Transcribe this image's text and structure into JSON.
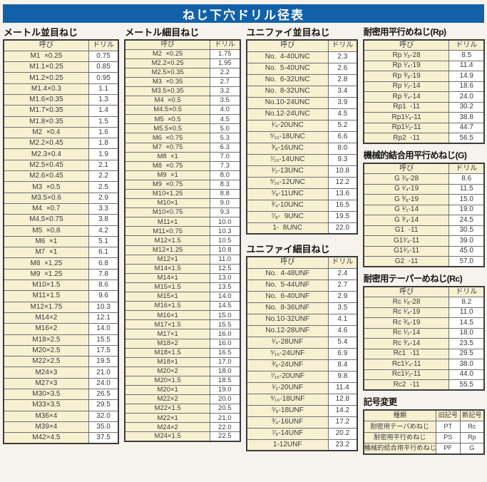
{
  "title": "ねじ下穴ドリル径表",
  "colors": {
    "header_bar": "#1261a8",
    "cell_cream": "#f7f1d2",
    "border": "#3c3c3c"
  },
  "sections": {
    "metric_coarse": {
      "title": "メートル並目ねじ",
      "columns": [
        "呼び",
        "ドリル"
      ],
      "rows": [
        [
          "M1  ×0.25",
          "0.75"
        ],
        [
          "M1.1×0.25",
          "0.85"
        ],
        [
          "M1.2×0.25",
          "0.95"
        ],
        [
          "M1.4×0.3",
          "1.1"
        ],
        [
          "M1.6×0.35",
          "1.3"
        ],
        [
          "M1.7×0.35",
          "1.4"
        ],
        [
          "M1.8×0.35",
          "1.5"
        ],
        [
          "M2  ×0.4",
          "1.6"
        ],
        [
          "M2.2×0.45",
          "1.8"
        ],
        [
          "M2.3×0.4",
          "1.9"
        ],
        [
          "M2.5×0.45",
          "2.1"
        ],
        [
          "M2.6×0.45",
          "2.2"
        ],
        [
          "M3  ×0.5",
          "2.5"
        ],
        [
          "M3.5×0.6",
          "2.9"
        ],
        [
          "M4  ×0.7",
          "3.3"
        ],
        [
          "M4.5×0.75",
          "3.8"
        ],
        [
          "M5  ×0.8",
          "4.2"
        ],
        [
          "M6  ×1",
          "5.1"
        ],
        [
          "M7  ×1",
          "6.1"
        ],
        [
          "M8  ×1.25",
          "6.8"
        ],
        [
          "M9  ×1.25",
          "7.8"
        ],
        [
          "M10×1.5",
          "8.6"
        ],
        [
          "M11×1.5",
          "9.6"
        ],
        [
          "M12×1.75",
          "10.3"
        ],
        [
          "M14×2",
          "12.1"
        ],
        [
          "M16×2",
          "14.0"
        ],
        [
          "M18×2.5",
          "15.5"
        ],
        [
          "M20×2.5",
          "17.5"
        ],
        [
          "M22×2.5",
          "19.5"
        ],
        [
          "M24×3",
          "21.0"
        ],
        [
          "M27×3",
          "24.0"
        ],
        [
          "M30×3.5",
          "26.5"
        ],
        [
          "M33×3.5",
          "29.5"
        ],
        [
          "M36×4",
          "32.0"
        ],
        [
          "M39×4",
          "35.0"
        ],
        [
          "M42×4.5",
          "37.5"
        ]
      ]
    },
    "metric_fine": {
      "title": "メートル細目ねじ",
      "columns": [
        "呼び",
        "ドリル"
      ],
      "rows": [
        [
          "M2  ×0.25",
          "1.75"
        ],
        [
          "M2.2×0.25",
          "1.95"
        ],
        [
          "M2.5×0.35",
          "2.2"
        ],
        [
          "M3  ×0.35",
          "2.7"
        ],
        [
          "M3.5×0.35",
          "3.2"
        ],
        [
          "M4  ×0.5",
          "3.5"
        ],
        [
          "M4.5×0.5",
          "4.0"
        ],
        [
          "M5  ×0.5",
          "4.5"
        ],
        [
          "M5.5×0.5",
          "5.0"
        ],
        [
          "M6  ×0.75",
          "5.3"
        ],
        [
          "M7  ×0.75",
          "6.3"
        ],
        [
          "M8  ×1",
          "7.0"
        ],
        [
          "M8  ×0.75",
          "7.3"
        ],
        [
          "M9  ×1",
          "8.0"
        ],
        [
          "M9  ×0.75",
          "8.3"
        ],
        [
          "M10×1.25",
          "8.8"
        ],
        [
          "M10×1",
          "9.0"
        ],
        [
          "M10×0.75",
          "9.3"
        ],
        [
          "M11×1",
          "10.0"
        ],
        [
          "M11×0.75",
          "10.3"
        ],
        [
          "M12×1.5",
          "10.5"
        ],
        [
          "M12×1.25",
          "10.8"
        ],
        [
          "M12×1",
          "11.0"
        ],
        [
          "M14×1.5",
          "12.5"
        ],
        [
          "M14×1",
          "13.0"
        ],
        [
          "M15×1.5",
          "13.5"
        ],
        [
          "M15×1",
          "14.0"
        ],
        [
          "M16×1.5",
          "14.5"
        ],
        [
          "M16×1",
          "15.0"
        ],
        [
          "M17×1.5",
          "15.5"
        ],
        [
          "M17×1",
          "16.0"
        ],
        [
          "M18×2",
          "16.0"
        ],
        [
          "M18×1.5",
          "16.5"
        ],
        [
          "M18×1",
          "17.0"
        ],
        [
          "M20×2",
          "18.0"
        ],
        [
          "M20×1.5",
          "18.5"
        ],
        [
          "M20×1",
          "19.0"
        ],
        [
          "M22×2",
          "20.0"
        ],
        [
          "M22×1.5",
          "20.5"
        ],
        [
          "M22×1",
          "21.0"
        ],
        [
          "M24×2",
          "22.0"
        ],
        [
          "M24×1.5",
          "22.5"
        ]
      ]
    },
    "unified_coarse": {
      "title": "ユニファイ並目ねじ",
      "columns": [
        "呼び",
        "ドリル"
      ],
      "rows": [
        [
          "No.  4-40UNC",
          "2.3"
        ],
        [
          "No.  5-40UNC",
          "2.6"
        ],
        [
          "No.  6-32UNC",
          "2.8"
        ],
        [
          "No.  8-32UNC",
          "3.4"
        ],
        [
          "No.10-24UNC",
          "3.9"
        ],
        [
          "No.12-24UNC",
          "4.5"
        ],
        [
          "¹⁄₄-20UNC",
          "5.2"
        ],
        [
          "⁵⁄₁₆-18UNC",
          "6.6"
        ],
        [
          "³⁄₈-16UNC",
          "8.0"
        ],
        [
          "⁷⁄₁₆-14UNC",
          "9.3"
        ],
        [
          "¹⁄₂-13UNC",
          "10.8"
        ],
        [
          "⁹⁄₁₆-12UNC",
          "12.2"
        ],
        [
          "⁵⁄₈-11UNC",
          "13.6"
        ],
        [
          "³⁄₄-10UNC",
          "16.5"
        ],
        [
          "⁷⁄₈-  9UNC",
          "19.5"
        ],
        [
          "1-  8UNC",
          "22.0"
        ]
      ]
    },
    "unified_fine": {
      "title": "ユニファイ細目ねじ",
      "columns": [
        "呼び",
        "ドリル"
      ],
      "rows": [
        [
          "No.  4-48UNF",
          "2.4"
        ],
        [
          "No.  5-44UNF",
          "2.7"
        ],
        [
          "No.  6-40UNF",
          "2.9"
        ],
        [
          "No.  8-36UNF",
          "3.5"
        ],
        [
          "No.10-32UNF",
          "4.1"
        ],
        [
          "No.12-28UNF",
          "4.6"
        ],
        [
          "¹⁄₄-28UNF",
          "5.4"
        ],
        [
          "⁵⁄₁₆-24UNF",
          "6.9"
        ],
        [
          "³⁄₈-24UNF",
          "8.4"
        ],
        [
          "⁷⁄₁₆-20UNF",
          "9.8"
        ],
        [
          "¹⁄₂-20UNF",
          "11.4"
        ],
        [
          "⁹⁄₁₆-18UNF",
          "12.8"
        ],
        [
          "⁵⁄₈-18UNF",
          "14.2"
        ],
        [
          "³⁄₄-16UNF",
          "17.2"
        ],
        [
          "⁷⁄₈-14UNF",
          "20.2"
        ],
        [
          "1-12UNF",
          "23.2"
        ]
      ]
    },
    "rp": {
      "title": "耐密用平行めねじ(Rp)",
      "columns": [
        "呼び",
        "ドリル"
      ],
      "rows": [
        [
          "Rp ¹⁄₈-28",
          "8.5"
        ],
        [
          "Rp ¹⁄₄-19",
          "11.4"
        ],
        [
          "Rp ³⁄₈-19",
          "14.9"
        ],
        [
          "Rp ¹⁄₂-14",
          "18.6"
        ],
        [
          "Rp ³⁄₄-14",
          "24.0"
        ],
        [
          "Rp1  -11",
          "30.2"
        ],
        [
          "Rp1¹⁄₄-11",
          "38.8"
        ],
        [
          "Rp1¹⁄₂-11",
          "44.7"
        ],
        [
          "Rp2  -11",
          "56.5"
        ]
      ]
    },
    "g": {
      "title": "機械的結合用平行めねじ(G)",
      "columns": [
        "呼び",
        "ドリル"
      ],
      "rows": [
        [
          "G ¹⁄₈-28",
          "8.6"
        ],
        [
          "G ¹⁄₄-19",
          "11.5"
        ],
        [
          "G ³⁄₈-19",
          "15.0"
        ],
        [
          "G ¹⁄₂-14",
          "19.0"
        ],
        [
          "G ³⁄₄-14",
          "24.5"
        ],
        [
          "G1  -11",
          "30.5"
        ],
        [
          "G1¹⁄₄-11",
          "39.0"
        ],
        [
          "G1¹⁄₂-11",
          "45.0"
        ],
        [
          "G2  -11",
          "57.0"
        ]
      ]
    },
    "rc": {
      "title": "耐密用テーパーめねじ(Rc)",
      "columns": [
        "呼び",
        "ドリル"
      ],
      "rows": [
        [
          "Rc ¹⁄₈-28",
          "8.2"
        ],
        [
          "Rc ¹⁄₄-19",
          "11.0"
        ],
        [
          "Rc ³⁄₈-19",
          "14.5"
        ],
        [
          "Rc ¹⁄₂-14",
          "18.0"
        ],
        [
          "Rc ³⁄₄-14",
          "23.5"
        ],
        [
          "Rc1  -11",
          "29.5"
        ],
        [
          "Rc1¹⁄₄-11",
          "38.0"
        ],
        [
          "Rc1¹⁄₂-11",
          "44.0"
        ],
        [
          "Rc2  -11",
          "55.5"
        ]
      ]
    },
    "symbol_change": {
      "title": "記号変更",
      "columns": [
        "種類",
        "旧記号",
        "新記号"
      ],
      "rows": [
        [
          "耐密用テーパめねじ",
          "PT",
          "Rc"
        ],
        [
          "耐密用平行めねじ",
          "PS",
          "Rp"
        ],
        [
          "機械的結合用平行めねじ",
          "PF",
          "G"
        ]
      ]
    }
  }
}
